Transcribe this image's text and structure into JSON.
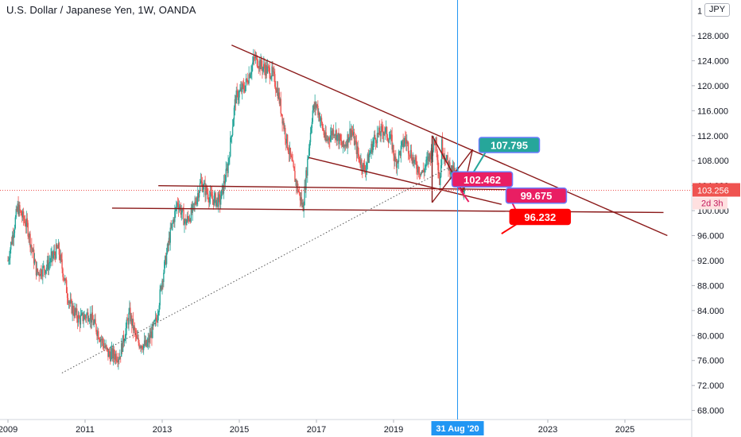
{
  "header": {
    "title": "U.S. Dollar / Japanese Yen, 1W, OANDA",
    "currency": "JPY"
  },
  "chart_data": {
    "type": "candlestick",
    "title": "U.S. Dollar / Japanese Yen, 1W, OANDA",
    "xlabel": "",
    "ylabel": "",
    "x_range": [
      2009.0,
      2026.0
    ],
    "y_range": [
      66.6,
      131.1
    ],
    "y_ticks": [
      "68.000",
      "72.000",
      "76.000",
      "80.000",
      "84.000",
      "88.000",
      "92.000",
      "96.000",
      "100.000",
      "104.000",
      "108.000",
      "112.000",
      "116.000",
      "120.000",
      "124.000",
      "128.000"
    ],
    "y_tick_values": [
      68,
      72,
      76,
      80,
      84,
      88,
      92,
      96,
      100,
      104,
      108,
      112,
      116,
      120,
      124,
      128
    ],
    "x_ticks": [
      {
        "label": "2009",
        "value": 2009.0
      },
      {
        "label": "2011",
        "value": 2011.0
      },
      {
        "label": "2013",
        "value": 2013.0
      },
      {
        "label": "2015",
        "value": 2015.0
      },
      {
        "label": "2017",
        "value": 2017.0
      },
      {
        "label": "2019",
        "value": 2019.0
      },
      {
        "label": "2023",
        "value": 2023.0
      },
      {
        "label": "2025",
        "value": 2025.0
      }
    ],
    "cursor": {
      "date_label": "31 Aug '20",
      "x": 2020.66
    },
    "current_price": {
      "label": "103.256",
      "value": 103.256,
      "countdown": "2d 3h"
    },
    "price_path": [
      [
        2009.0,
        92.0
      ],
      [
        2009.25,
        100.5
      ],
      [
        2009.5,
        97.5
      ],
      [
        2009.75,
        90.0
      ],
      [
        2010.0,
        91.0
      ],
      [
        2010.3,
        94.0
      ],
      [
        2010.6,
        85.0
      ],
      [
        2010.85,
        82.5
      ],
      [
        2011.1,
        83.5
      ],
      [
        2011.3,
        81.0
      ],
      [
        2011.6,
        77.0
      ],
      [
        2011.9,
        76.8
      ],
      [
        2012.15,
        83.5
      ],
      [
        2012.35,
        79.0
      ],
      [
        2012.6,
        78.3
      ],
      [
        2012.85,
        82.5
      ],
      [
        2013.0,
        89.0
      ],
      [
        2013.2,
        96.0
      ],
      [
        2013.4,
        101.5
      ],
      [
        2013.6,
        98.0
      ],
      [
        2013.8,
        100.0
      ],
      [
        2014.0,
        104.5
      ],
      [
        2014.25,
        102.0
      ],
      [
        2014.5,
        101.5
      ],
      [
        2014.7,
        107.0
      ],
      [
        2014.9,
        118.0
      ],
      [
        2015.15,
        120.0
      ],
      [
        2015.4,
        124.5
      ],
      [
        2015.6,
        123.0
      ],
      [
        2015.85,
        122.0
      ],
      [
        2016.0,
        119.0
      ],
      [
        2016.2,
        112.0
      ],
      [
        2016.45,
        105.0
      ],
      [
        2016.65,
        100.5
      ],
      [
        2016.9,
        116.0
      ],
      [
        2017.0,
        117.0
      ],
      [
        2017.25,
        111.0
      ],
      [
        2017.45,
        113.0
      ],
      [
        2017.7,
        110.0
      ],
      [
        2017.9,
        113.0
      ],
      [
        2018.1,
        108.5
      ],
      [
        2018.25,
        106.5
      ],
      [
        2018.5,
        111.5
      ],
      [
        2018.75,
        113.0
      ],
      [
        2018.95,
        111.0
      ],
      [
        2019.05,
        107.5
      ],
      [
        2019.3,
        111.5
      ],
      [
        2019.55,
        107.5
      ],
      [
        2019.75,
        106.0
      ],
      [
        2019.95,
        109.0
      ],
      [
        2020.1,
        111.5
      ],
      [
        2020.2,
        104.0
      ],
      [
        2020.25,
        110.5
      ],
      [
        2020.4,
        107.5
      ],
      [
        2020.55,
        106.0
      ],
      [
        2020.66,
        105.5
      ],
      [
        2020.75,
        104.5
      ],
      [
        2020.85,
        103.3
      ]
    ],
    "drawings": [
      {
        "name": "long-downtrend-line",
        "color": "#8b1a1a",
        "points": [
          [
            2014.8,
            126.5
          ],
          [
            2026.1,
            96.0
          ]
        ]
      },
      {
        "name": "wedge-lower-line",
        "color": "#8b1a1a",
        "points": [
          [
            2016.8,
            108.5
          ],
          [
            2021.8,
            101.0
          ]
        ]
      },
      {
        "name": "support-line-upper",
        "color": "#8b1a1a",
        "points": [
          [
            2012.9,
            104.0
          ],
          [
            2023.0,
            103.3
          ]
        ]
      },
      {
        "name": "support-line-lower",
        "color": "#8b1a1a",
        "points": [
          [
            2011.7,
            100.4
          ],
          [
            2026.0,
            99.7
          ]
        ]
      },
      {
        "name": "dotted-trendline",
        "color": "#555555",
        "dotted": true,
        "points": [
          [
            2010.4,
            74.0
          ],
          [
            2020.4,
            106.8
          ]
        ]
      },
      {
        "name": "cross-line-1",
        "color": "#8b1a1a",
        "points": [
          [
            2020.0,
            112.0
          ],
          [
            2020.8,
            103.0
          ]
        ]
      },
      {
        "name": "cross-line-2",
        "color": "#8b1a1a",
        "points": [
          [
            2020.0,
            101.3
          ],
          [
            2021.05,
            109.8
          ]
        ]
      },
      {
        "name": "cross-line-3",
        "color": "#8b1a1a",
        "points": [
          [
            2020.0,
            112.0
          ],
          [
            2020.0,
            101.3
          ]
        ]
      },
      {
        "name": "cross-line-4",
        "color": "#8b1a1a",
        "points": [
          [
            2020.8,
            103.0
          ],
          [
            2021.05,
            109.8
          ]
        ]
      }
    ],
    "targets": [
      {
        "label": "107.795",
        "value": 107.795,
        "color": "#26a69a",
        "arrow_from": [
          2020.95,
          104.9
        ],
        "box": [
          2022.0,
          110.5
        ]
      },
      {
        "label": "102.462",
        "value": 102.462,
        "color": "#e91e63",
        "arrow_from": [
          2020.95,
          101.4
        ],
        "box": [
          2021.3,
          105.0
        ]
      },
      {
        "label": "99.675",
        "value": 99.675,
        "color": "#e91e63",
        "arrow_from": [
          2022.2,
          99.7
        ],
        "box": [
          2022.7,
          102.4
        ]
      },
      {
        "label": "96.232",
        "value": 96.232,
        "color": "#ff0000",
        "arrow_from": [
          2021.8,
          96.3
        ],
        "box": [
          2022.8,
          99.0
        ]
      }
    ]
  },
  "colors": {
    "up": "#26a69a",
    "down": "#ef5350",
    "drawing": "#8b1a1a",
    "cursor": "#2196f3",
    "price_label_bg": "#ef5350"
  }
}
